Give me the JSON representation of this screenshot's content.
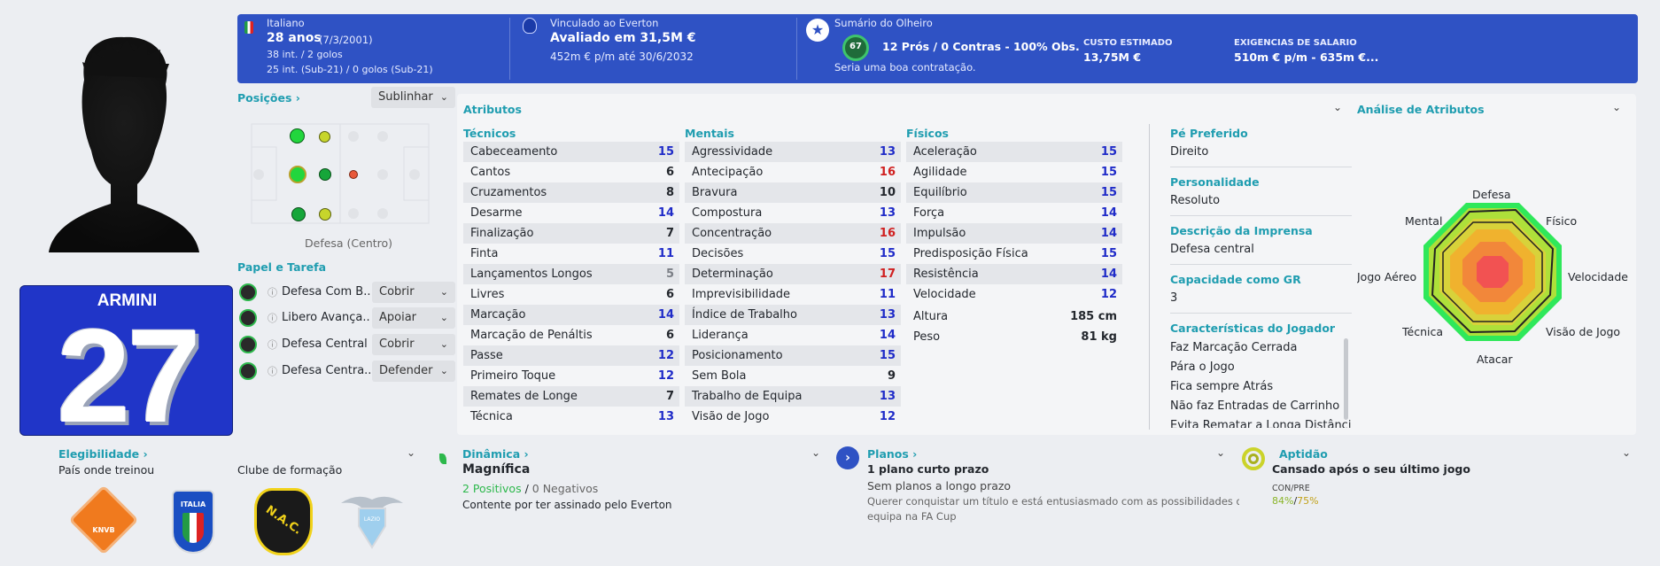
{
  "player": {
    "name": "ARMINI",
    "number": "27"
  },
  "header": {
    "nationality": "Italiano",
    "age": "28 anos",
    "dob": "(7/3/2001)",
    "caps": "38 int. / 2 golos",
    "u21": "25 int. (Sub-21) / 0 golos (Sub-21)",
    "club_label": "Vinculado ao Everton",
    "value": "Avaliado em 31,5M €",
    "contract": "452m € p/m até 30/6/2032",
    "scout_title": "Sumário do Olheiro",
    "scout_score": "67",
    "scout_pros": "12 Prós / 0 Contras - 100% Obs.",
    "scout_verdict": "Seria uma boa contratação.",
    "cost_label": "CUSTO ESTIMADO",
    "cost": "13,75M €",
    "wage_label": "EXIGÊNCIAS DE SALÁRIO",
    "wage": "510m € p/m - 635m €..."
  },
  "positions": {
    "title": "Posições",
    "highlight_btn": "Sublinhar",
    "label": "Defesa (Centro)"
  },
  "roles": {
    "title": "Papel e Tarefa",
    "items": [
      {
        "role": "Defesa Com B...",
        "duty": "Cobrir"
      },
      {
        "role": "Libero Avança...",
        "duty": "Apoiar"
      },
      {
        "role": "Defesa Central",
        "duty": "Cobrir"
      },
      {
        "role": "Defesa Centra...",
        "duty": "Defender"
      }
    ]
  },
  "attributes": {
    "title": "Atributos",
    "technical_title": "Técnicos",
    "mental_title": "Mentais",
    "physical_title": "Físicos",
    "technical": [
      [
        "Cabeceamento",
        "15",
        "blue"
      ],
      [
        "Cantos",
        "6",
        "blk"
      ],
      [
        "Cruzamentos",
        "8",
        "blk"
      ],
      [
        "Desarme",
        "14",
        "blue"
      ],
      [
        "Finalização",
        "7",
        "blk"
      ],
      [
        "Finta",
        "11",
        "blue"
      ],
      [
        "Lançamentos Longos",
        "5",
        "gry"
      ],
      [
        "Livres",
        "6",
        "blk"
      ],
      [
        "Marcação",
        "14",
        "blue"
      ],
      [
        "Marcação de Penáltis",
        "6",
        "blk"
      ],
      [
        "Passe",
        "12",
        "blue"
      ],
      [
        "Primeiro Toque",
        "12",
        "blue"
      ],
      [
        "Remates de Longe",
        "7",
        "blk"
      ],
      [
        "Técnica",
        "13",
        "blue"
      ]
    ],
    "mental": [
      [
        "Agressividade",
        "13",
        "blue"
      ],
      [
        "Antecipação",
        "16",
        "red"
      ],
      [
        "Bravura",
        "10",
        "blk"
      ],
      [
        "Compostura",
        "13",
        "blue"
      ],
      [
        "Concentração",
        "16",
        "red"
      ],
      [
        "Decisões",
        "15",
        "blue"
      ],
      [
        "Determinação",
        "17",
        "red"
      ],
      [
        "Imprevisibilidade",
        "11",
        "blue"
      ],
      [
        "Índice de Trabalho",
        "13",
        "blue"
      ],
      [
        "Liderança",
        "14",
        "blue"
      ],
      [
        "Posicionamento",
        "15",
        "blue"
      ],
      [
        "Sem Bola",
        "9",
        "blk"
      ],
      [
        "Trabalho de Equipa",
        "13",
        "blue"
      ],
      [
        "Visão de Jogo",
        "12",
        "blue"
      ]
    ],
    "physical": [
      [
        "Aceleração",
        "15",
        "blue"
      ],
      [
        "Agilidade",
        "15",
        "blue"
      ],
      [
        "Equilíbrio",
        "15",
        "blue"
      ],
      [
        "Força",
        "14",
        "blue"
      ],
      [
        "Impulsão",
        "14",
        "blue"
      ],
      [
        "Predisposição Física",
        "15",
        "blue"
      ],
      [
        "Resistência",
        "14",
        "blue"
      ],
      [
        "Velocidade",
        "12",
        "blue"
      ]
    ],
    "height_label": "Altura",
    "height": "185 cm",
    "weight_label": "Peso",
    "weight": "81 kg"
  },
  "profile": {
    "foot_label": "Pé Preferido",
    "foot": "Direito",
    "pers_label": "Personalidade",
    "pers": "Resoluto",
    "press_label": "Descrição da Imprensa",
    "press": "Defesa central",
    "gk_label": "Capacidade como GR",
    "gk": "3",
    "traits_label": "Características do Jogador",
    "traits": [
      "Faz Marcação Cerrada",
      "Pára o Jogo",
      "Fica sempre Atrás",
      "Não faz Entradas de Carrinho",
      "Evita Rematar a Longa Distância"
    ]
  },
  "analysis": {
    "title": "Análise de Atributos",
    "labels": [
      "Defesa",
      "Físico",
      "Velocidade",
      "Visão de Jogo",
      "Atacar",
      "Técnica",
      "Jogo Aéreo",
      "Mental"
    ]
  },
  "bottom": {
    "elig_title": "Elegibilidade",
    "trained_in": "País onde treinou",
    "youth_club": "Clube de formação",
    "dyn_title": "Dinâmica",
    "dyn_value": "Magnífica",
    "dyn_pos": "2 Positivos",
    "dyn_sep": "/",
    "dyn_neg": "0 Negativos",
    "dyn_note": "Contente por ter assinado pelo Everton",
    "plans_title": "Planos",
    "plans_1": "1 plano curto prazo",
    "plans_2": "Sem planos a longo prazo",
    "plans_3": "Querer conquistar um título e está entusiasmado com as possibilidades da",
    "plans_4": "equipa na FA Cup",
    "fit_title": "Aptidão",
    "fit_value": "Cansado após o seu último jogo",
    "fit_label": "CON/PRE",
    "fit_con": "84%",
    "fit_sep": "/",
    "fit_pre": "75%"
  },
  "badges": {
    "knvb": "KNVB",
    "italia": "ITALIA",
    "nac": "N.A.C.",
    "lazio": "LAZIO"
  },
  "colors": {
    "header": "#2f52c4",
    "teal": "#1f9db0",
    "attr_blue": "#1f2bc8",
    "attr_red": "#d02020",
    "green": "#2db84c"
  }
}
